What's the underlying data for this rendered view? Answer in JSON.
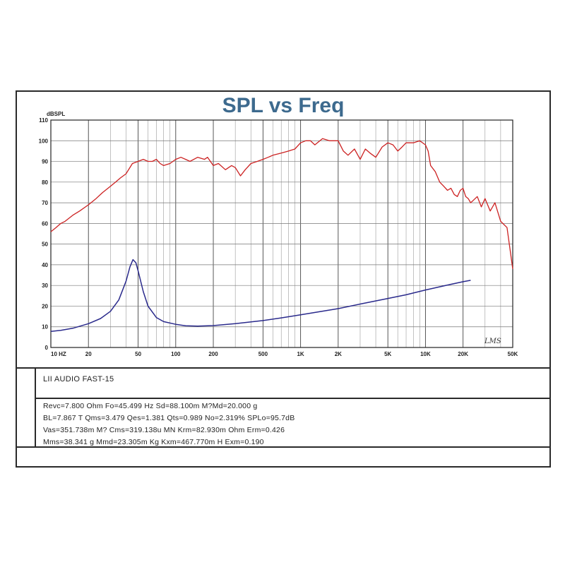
{
  "chart_data": {
    "type": "line",
    "title": "SPL vs Freq",
    "ylabel": "dBSPL",
    "xscale": "log",
    "xlim": [
      10,
      50000
    ],
    "ylim": [
      0,
      110
    ],
    "grid": true,
    "y_ticks": [
      "0",
      "10",
      "20",
      "30",
      "40",
      "50",
      "60",
      "70",
      "80",
      "90",
      "100",
      "110"
    ],
    "x_ticks": [
      {
        "value": 10,
        "label": "10  HZ"
      },
      {
        "value": 20,
        "label": "20"
      },
      {
        "value": 50,
        "label": "50"
      },
      {
        "value": 100,
        "label": "100"
      },
      {
        "value": 200,
        "label": "200"
      },
      {
        "value": 500,
        "label": "500"
      },
      {
        "value": 1000,
        "label": "1K"
      },
      {
        "value": 2000,
        "label": "2K"
      },
      {
        "value": 5000,
        "label": "5K"
      },
      {
        "value": 10000,
        "label": "10K"
      },
      {
        "value": 20000,
        "label": "20K"
      },
      {
        "value": 50000,
        "label": "50K"
      }
    ],
    "series": [
      {
        "color": "#cc2222",
        "x": [
          10,
          11,
          12,
          13,
          15,
          17,
          20,
          23,
          26,
          30,
          33,
          36,
          40,
          45,
          50,
          55,
          60,
          65,
          70,
          75,
          80,
          90,
          100,
          110,
          120,
          130,
          150,
          170,
          180,
          200,
          220,
          250,
          280,
          300,
          330,
          360,
          400,
          450,
          500,
          550,
          600,
          700,
          800,
          900,
          1000,
          1100,
          1200,
          1300,
          1500,
          1700,
          1800,
          2000,
          2200,
          2400,
          2700,
          3000,
          3300,
          3600,
          4000,
          4500,
          5000,
          5500,
          6000,
          6500,
          7000,
          8000,
          9000,
          10000,
          10500,
          11000,
          12000,
          13000,
          14000,
          15000,
          16000,
          17000,
          18000,
          19000,
          20000,
          21000,
          22000,
          23000,
          24000,
          26000,
          28000,
          30000,
          33000,
          36000,
          40000,
          45000,
          50000
        ],
        "y": [
          56,
          58,
          60,
          61,
          64,
          66,
          69,
          72,
          75,
          78,
          80,
          82,
          84,
          89,
          90,
          91,
          90,
          90,
          91,
          89,
          88,
          89,
          91,
          92,
          91,
          90,
          92,
          91,
          92,
          88,
          89,
          86,
          88,
          87,
          83,
          86,
          89,
          90,
          91,
          92,
          93,
          94,
          95,
          96,
          99,
          100,
          100,
          98,
          101,
          100,
          100,
          100,
          95,
          93,
          96,
          91,
          96,
          94,
          92,
          97,
          99,
          98,
          95,
          97,
          99,
          99,
          100,
          98,
          95,
          88,
          85,
          80,
          78,
          76,
          77,
          74,
          73,
          76,
          77,
          73,
          72,
          70,
          71,
          73,
          68,
          72,
          66,
          70,
          61,
          58,
          38
        ]
      },
      {
        "color": "#2a2a8c",
        "x": [
          10,
          12,
          15,
          20,
          25,
          30,
          35,
          40,
          43,
          45.5,
          48,
          50,
          55,
          60,
          70,
          80,
          100,
          120,
          150,
          200,
          300,
          500,
          700,
          1000,
          2000,
          3000,
          5000,
          7000,
          10000,
          15000,
          20000,
          23000
        ],
        "y": [
          7.8,
          8.3,
          9.3,
          11.5,
          14,
          17.5,
          23,
          32,
          39,
          42.5,
          41,
          37,
          27,
          20,
          14.5,
          12.5,
          11.2,
          10.5,
          10.3,
          10.6,
          11.5,
          13,
          14.3,
          15.8,
          18.8,
          21,
          23.7,
          25.5,
          27.8,
          30.2,
          31.8,
          32.5
        ]
      }
    ]
  },
  "watermark": "LMS",
  "model": "LII AUDIO FAST-15",
  "parameters": [
    "Revc=7.800 Ohm  Fo=45.499 Hz  Sd=88.100m M?Md=20.000 g",
    "BL=7.867 T Qms=3.479  Qes=1.381  Qts=0.989  No=2.319%  SPLo=95.7dB",
    "Vas=351.738m M? Cms=319.138u MN Krm=82.930m Ohm Erm=0.426",
    "Mms=38.341 g  Mmd=23.305m Kg  Kxm=467.770m H  Exm=0.190"
  ]
}
